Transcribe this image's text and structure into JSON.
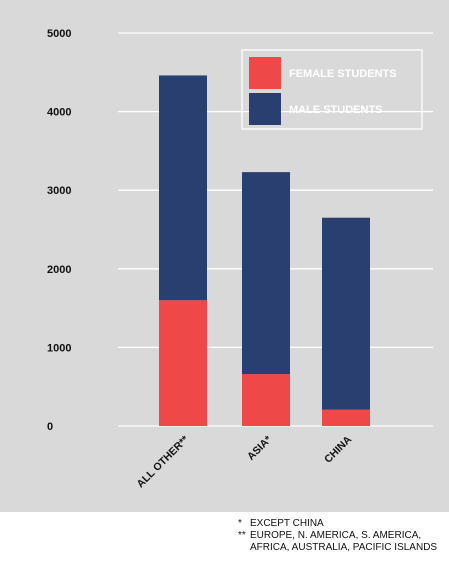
{
  "chart_data": {
    "type": "bar",
    "stacked": true,
    "categories": [
      "ALL OTHER**",
      "ASIA*",
      "CHINA"
    ],
    "series": [
      {
        "name": "FEMALE STUDENTS",
        "color": "#ef4848",
        "values": [
          1600,
          660,
          210
        ]
      },
      {
        "name": "MALE STUDENTS",
        "color": "#283f70",
        "values": [
          2860,
          2570,
          2440
        ]
      }
    ],
    "yticks": [
      "0",
      "1000",
      "2000",
      "3000",
      "4000",
      "5000"
    ],
    "ylim": [
      0,
      5000
    ],
    "grid": true,
    "legend_position": "top-right",
    "background": "#d9d9d9",
    "title": "",
    "xlabel": "",
    "ylabel": ""
  },
  "footnotes": [
    {
      "mark": "*",
      "lines": [
        "EXCEPT CHINA"
      ]
    },
    {
      "mark": "**",
      "lines": [
        "EUROPE, N. AMERICA, S. AMERICA,",
        "AFRICA, AUSTRALIA, PACIFIC ISLANDS"
      ]
    }
  ]
}
